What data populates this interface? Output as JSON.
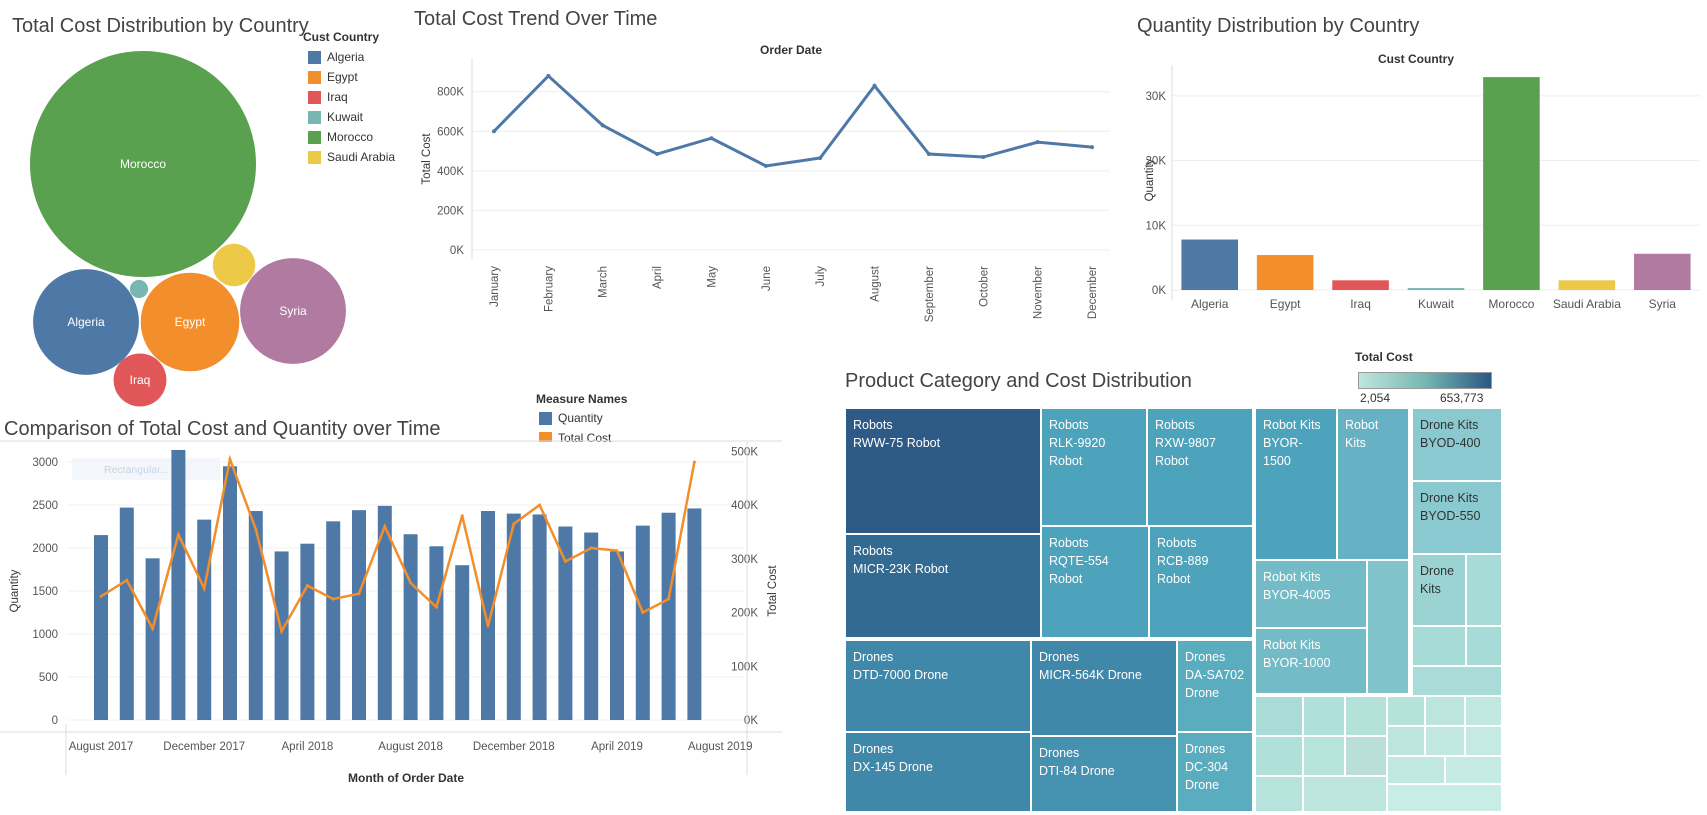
{
  "colors": {
    "Algeria": "#4e79a7",
    "Egypt": "#f28e2b",
    "Iraq": "#e15759",
    "Kuwait": "#76b7b2",
    "Morocco": "#59a14f",
    "Saudi Arabia": "#edc948",
    "Syria": "#b07aa1",
    "quantity_bar": "#4e79a7",
    "total_cost_line": "#f28e2b",
    "tm_min": "#bfe6dd",
    "tm_max": "#2a5783"
  },
  "bubble": {
    "title": "Total Cost Distribution by Country",
    "legend_title": "Cust Country",
    "legend": [
      "Algeria",
      "Egypt",
      "Iraq",
      "Kuwait",
      "Morocco",
      "Saudi Arabia"
    ],
    "labels": {
      "Morocco": "Morocco",
      "Algeria": "Algeria",
      "Egypt": "Egypt",
      "Syria": "Syria",
      "Iraq": "Iraq"
    }
  },
  "trend": {
    "title": "Total Cost Trend Over Time",
    "header": "Order Date",
    "ylabel": "Total Cost"
  },
  "qty": {
    "title": "Quantity Distribution by Country",
    "header": "Cust Country",
    "ylabel": "Quantity"
  },
  "combo": {
    "title": "Comparison of Total Cost and Quantity over Time",
    "legend_title": "Measure Names",
    "legend": [
      "Quantity",
      "Total Cost"
    ],
    "xlabel": "Month of Order Date",
    "ylabel_left": "Quantity",
    "ylabel_right": "Total Cost",
    "ghost_tool": "Rectangular..."
  },
  "treemap": {
    "title": "Product Category and Cost Distribution",
    "legend_title": "Total Cost",
    "legend_min": "2,054",
    "legend_max": "653,773",
    "cells": [
      "Robots\nRWW-75 Robot",
      "Robots\nRLK-9920 Robot",
      "Robots\nRXW-9807\nRobot",
      "Robots\nMICR-23K Robot",
      "Robots\nRQTE-554\nRobot",
      "Robots\nRCB-889 Robot",
      "Robot Kits\nBYOR-1500",
      "Robot\nKits",
      "Robot Kits\nBYOR-4005",
      "Robot Kits\nBYOR-1000",
      "Drone Kits\nBYOD-400",
      "Drone Kits\nBYOD-550",
      "Drone\nKits",
      "Drones\nDTD-7000 Drone",
      "Drones\nMICR-564K Drone",
      "Drones\nDA-SA702\nDrone",
      "Drones\nDX-145 Drone",
      "Drones\nDTI-84 Drone",
      "Drones\nDC-304\nDrone"
    ]
  },
  "chart_data": [
    {
      "type": "bubble",
      "title": "Total Cost Distribution by Country",
      "legend_title": "Cust Country",
      "categories": [
        "Morocco",
        "Syria",
        "Algeria",
        "Egypt",
        "Iraq",
        "Saudi Arabia",
        "Kuwait"
      ],
      "values": [
        3100000,
        680000,
        680000,
        590000,
        170000,
        110000,
        20000
      ]
    },
    {
      "type": "line",
      "title": "Total Cost Trend Over Time",
      "header": "Order Date",
      "ylabel": "Total Cost",
      "categories": [
        "January",
        "February",
        "March",
        "April",
        "May",
        "June",
        "July",
        "August",
        "September",
        "October",
        "November",
        "December"
      ],
      "values": [
        600000,
        880000,
        630000,
        485000,
        565000,
        425000,
        465000,
        830000,
        485000,
        470000,
        545000,
        520000
      ],
      "yticks": [
        0,
        200000,
        400000,
        600000,
        800000
      ],
      "ytick_labels": [
        "0K",
        "200K",
        "400K",
        "600K",
        "800K"
      ],
      "ylim": [
        0,
        920000
      ]
    },
    {
      "type": "bar",
      "title": "Quantity Distribution by Country",
      "header": "Cust Country",
      "ylabel": "Quantity",
      "categories": [
        "Algeria",
        "Egypt",
        "Iraq",
        "Kuwait",
        "Morocco",
        "Saudi Arabia",
        "Syria"
      ],
      "values": [
        7800,
        5400,
        1500,
        300,
        32900,
        1500,
        5600
      ],
      "yticks": [
        0,
        10000,
        20000,
        30000
      ],
      "ytick_labels": [
        "0K",
        "10K",
        "20K",
        "30K"
      ],
      "ylim": [
        0,
        34000
      ]
    },
    {
      "type": "bar+line",
      "title": "Comparison of Total Cost and Quantity over Time",
      "xlabel": "Month of Order Date",
      "x_tick_labels": [
        "August 2017",
        "December 2017",
        "April 2018",
        "August 2018",
        "December 2018",
        "April 2019",
        "August 2019"
      ],
      "series": [
        {
          "name": "Quantity",
          "axis": "left",
          "values": [
            2150,
            2470,
            1880,
            3140,
            2330,
            2950,
            2430,
            1960,
            2050,
            2310,
            2440,
            2490,
            2160,
            2020,
            1800,
            2430,
            2400,
            2390,
            2250,
            2180,
            1960,
            2260,
            2410,
            2460
          ]
        },
        {
          "name": "Total Cost",
          "axis": "right",
          "values": [
            230000,
            260000,
            170000,
            345000,
            245000,
            485000,
            355000,
            165000,
            250000,
            225000,
            235000,
            360000,
            255000,
            210000,
            380000,
            175000,
            365000,
            400000,
            295000,
            320000,
            315000,
            200000,
            225000,
            480000
          ]
        }
      ],
      "yticks_left": [
        0,
        500,
        1000,
        1500,
        2000,
        2500,
        3000
      ],
      "ylim_left": [
        0,
        3000
      ],
      "yticks_right": [
        0,
        100000,
        200000,
        300000,
        400000,
        500000
      ],
      "ytick_labels_right": [
        "0K",
        "100K",
        "200K",
        "300K",
        "400K",
        "500K"
      ],
      "ylim_right": [
        0,
        480000
      ]
    }
  ]
}
